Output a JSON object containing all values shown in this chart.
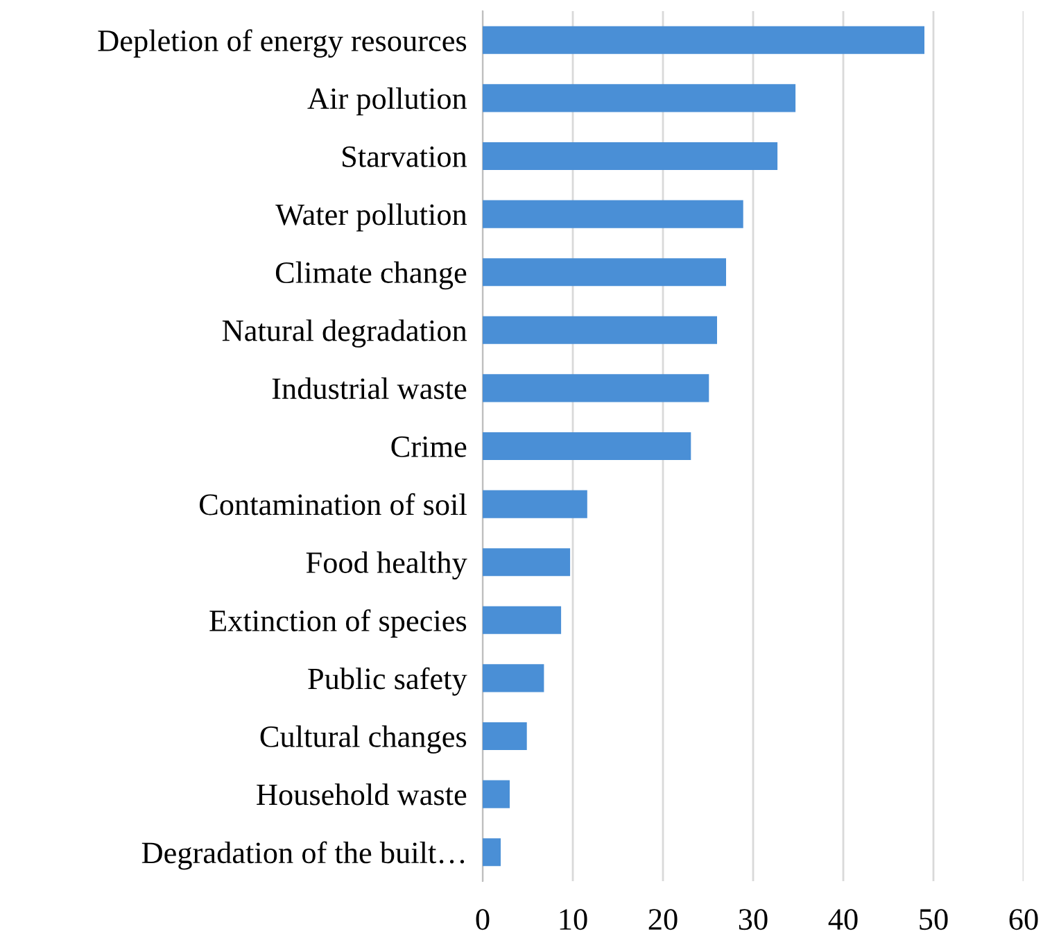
{
  "chart_data": {
    "type": "bar",
    "orientation": "horizontal",
    "categories": [
      "Depletion of energy resources",
      "Air pollution",
      "Starvation",
      "Water pollution",
      "Climate change",
      "Natural degradation",
      "Industrial waste",
      "Crime",
      "Contamination of soil",
      "Food healthy",
      "Extinction of species",
      "Public safety",
      "Cultural changes",
      "Household waste",
      "Degradation of the built…"
    ],
    "values": [
      49,
      34.7,
      32.7,
      28.9,
      27,
      26,
      25.1,
      23.1,
      11.6,
      9.7,
      8.7,
      6.8,
      4.9,
      3,
      2
    ],
    "color": "#4a8fd6",
    "xlim": [
      0,
      60
    ],
    "xticks": [
      0,
      10,
      20,
      30,
      40,
      50,
      60
    ],
    "grid": "x"
  }
}
